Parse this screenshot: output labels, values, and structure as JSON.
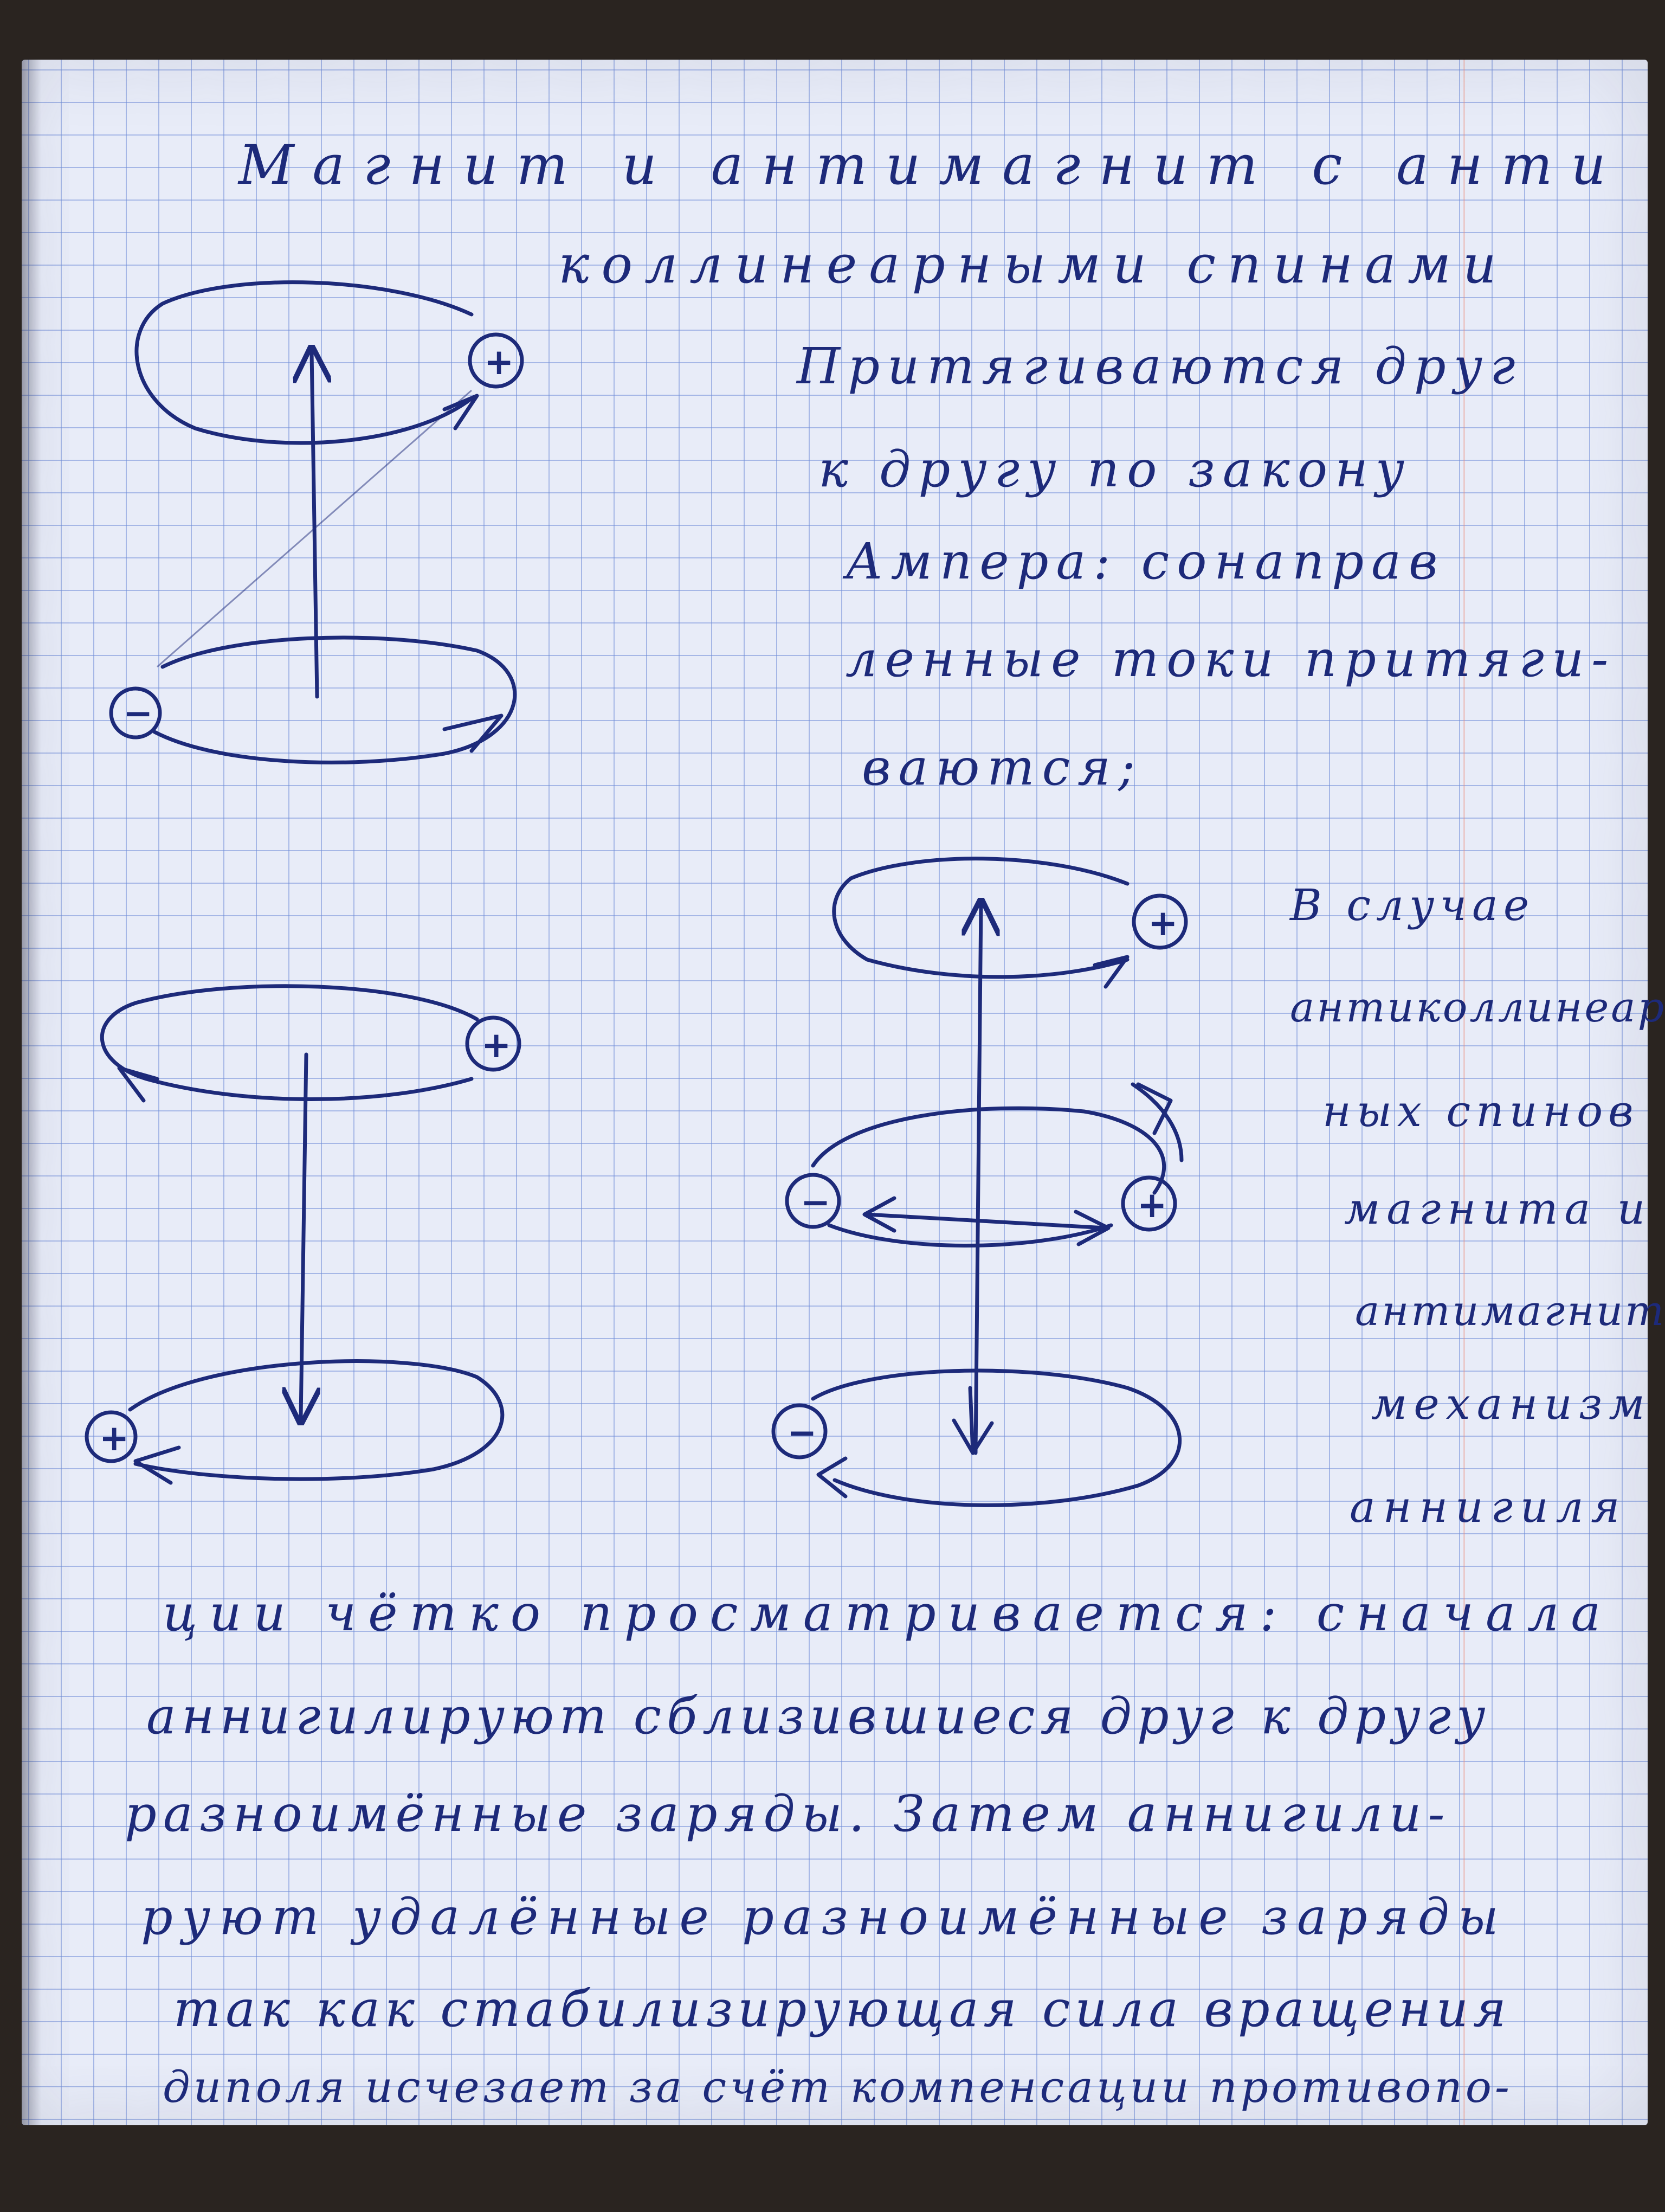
{
  "title": {
    "line1": "Магнит и антимагнит с анти",
    "line2": "коллинеарными спинами"
  },
  "right_text": [
    "Притягиваются друг",
    "к другу по закону",
    "Ампера: сонаправ",
    "ленные токи притяги-",
    "ваются;"
  ],
  "side_text": [
    "В случае",
    "антиколлинеар-",
    "ных спинов",
    "магнита и",
    "антимагнита",
    "механизм",
    "аннигиля"
  ],
  "bottom_text": [
    "ции чётко просматривается: сначала",
    "аннигилируют сблизившиеся друг к другу",
    "разноимённые заряды. Затем аннигили-",
    "руют удалённые разноимённые заряды",
    "так как стабилизирующая сила вращения",
    "диполя исчезает за счёт компенсации противопо-"
  ],
  "charge_signs": {
    "plus": "+",
    "minus": "−"
  },
  "colors": {
    "ink": "#1d2a7a",
    "paper": "#e8ecf8",
    "grid": "#6e8cd7"
  }
}
